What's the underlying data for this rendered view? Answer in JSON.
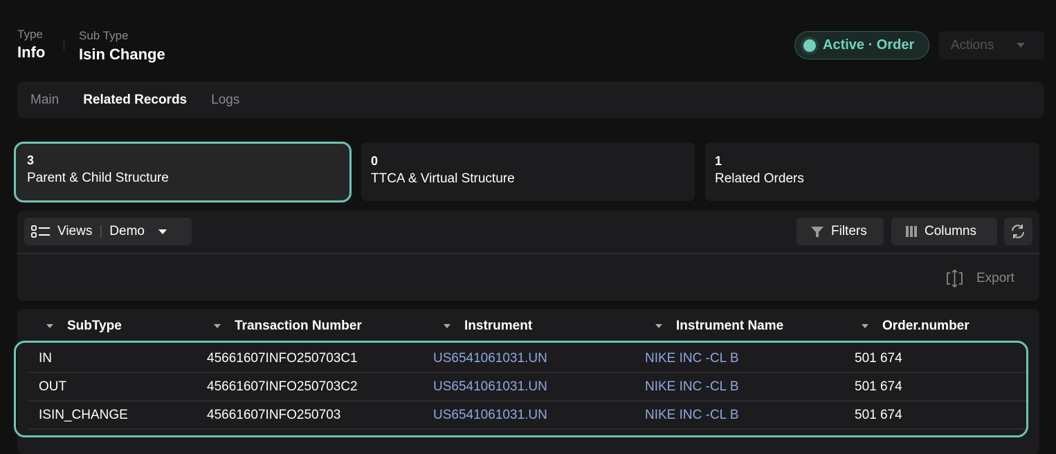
{
  "header": {
    "type_label": "Type",
    "type_value": "Info",
    "subtype_label": "Sub Type",
    "subtype_value": "Isin Change",
    "status": "Active · Order",
    "actions": "Actions"
  },
  "tabs": [
    {
      "label": "Main"
    },
    {
      "label": "Related Records",
      "active": true
    },
    {
      "label": "Logs"
    }
  ],
  "cards": [
    {
      "count": "3",
      "label": "Parent & Child Structure",
      "selected": true
    },
    {
      "count": "0",
      "label": "TTCA & Virtual Structure"
    },
    {
      "count": "1",
      "label": "Related Orders"
    }
  ],
  "toolbar": {
    "views": "Views",
    "view_name": "Demo",
    "filters": "Filters",
    "columns": "Columns",
    "export": "Export"
  },
  "table": {
    "columns": [
      "SubType",
      "Transaction Number",
      "Instrument",
      "Instrument Name",
      "Order.number"
    ],
    "rows": [
      [
        "IN",
        "45661607INFO250703C1",
        "US6541061031.UN",
        "NIKE INC -CL B",
        "501 674"
      ],
      [
        "OUT",
        "45661607INFO250703C2",
        "US6541061031.UN",
        "NIKE INC -CL B",
        "501 674"
      ],
      [
        "ISIN_CHANGE",
        "45661607INFO250703",
        "US6541061031.UN",
        "NIKE INC -CL B",
        "501 674"
      ]
    ]
  },
  "colors": {
    "accent": "#6cc6b5",
    "link": "#8fa8e0",
    "background": "#111112"
  }
}
